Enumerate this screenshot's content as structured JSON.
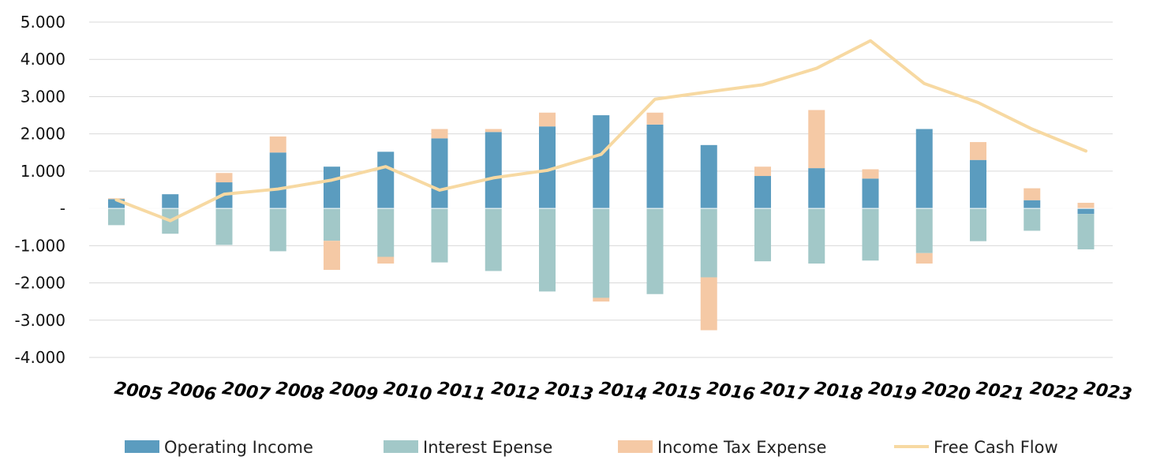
{
  "chart_data": {
    "type": "bar",
    "stacked": true,
    "title": "",
    "xlabel": "",
    "ylabel": "",
    "ylim": [
      -4000,
      5000
    ],
    "yticks": [
      5000,
      4000,
      3000,
      2000,
      1000,
      0,
      -1000,
      -2000,
      -3000,
      -4000
    ],
    "ytick_labels": [
      "5.000",
      "4.000",
      "3.000",
      "2.000",
      "1.000",
      "-",
      "-1.000",
      "-2.000",
      "-3.000",
      "-4.000"
    ],
    "grid": true,
    "legend_position": "bottom",
    "categories": [
      "2005",
      "2006",
      "2007",
      "2008",
      "2009",
      "2010",
      "2011",
      "2012",
      "2013",
      "2014",
      "2015",
      "2016",
      "2017",
      "2018",
      "2019",
      "2020",
      "2021",
      "2022",
      "2023"
    ],
    "series": [
      {
        "name": "Operating Income",
        "kind": "bar",
        "color": "#5b9cbf",
        "values": [
          250,
          380,
          700,
          1500,
          1120,
          1520,
          1880,
          2050,
          2200,
          2500,
          2250,
          1700,
          870,
          1080,
          800,
          2130,
          1300,
          220,
          -150
        ]
      },
      {
        "name": "Interest Epense",
        "kind": "bar",
        "color": "#a2c8c8",
        "values": [
          -450,
          -680,
          -980,
          -1150,
          -870,
          -1300,
          -1450,
          -1680,
          -2230,
          -2400,
          -2300,
          -1850,
          -1420,
          -1480,
          -1400,
          -1200,
          -880,
          -600,
          -950
        ]
      },
      {
        "name": "Income Tax Expense",
        "kind": "bar",
        "color": "#f5c9a5",
        "values": [
          20,
          0,
          250,
          430,
          -780,
          -180,
          250,
          80,
          370,
          -100,
          320,
          -1420,
          250,
          1560,
          250,
          -280,
          480,
          320,
          150
        ]
      },
      {
        "name": "Free Cash Flow",
        "kind": "line",
        "color": "#f7d9a2",
        "values": [
          230,
          -330,
          380,
          520,
          760,
          1120,
          490,
          820,
          1020,
          1450,
          2930,
          3130,
          3320,
          3760,
          4500,
          3350,
          2840,
          2130,
          1540
        ]
      }
    ]
  }
}
